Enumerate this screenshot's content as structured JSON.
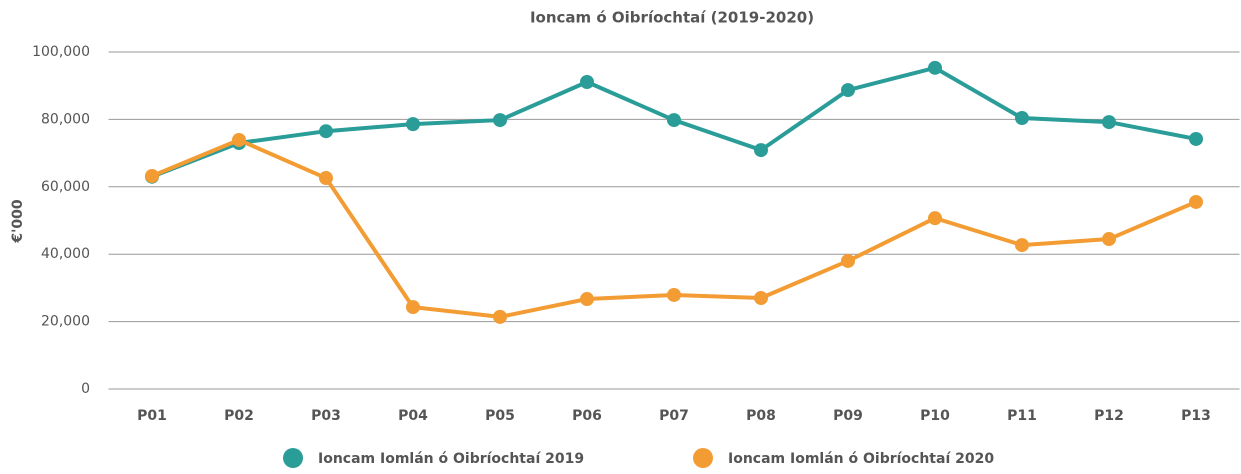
{
  "chart_data": {
    "type": "line",
    "title": "Ioncam ó Oibríochtaí (2019-2020)",
    "y_label": "€'000",
    "categories": [
      "P01",
      "P02",
      "P03",
      "P04",
      "P05",
      "P06",
      "P07",
      "P08",
      "P09",
      "P10",
      "P11",
      "P12",
      "P13"
    ],
    "series": [
      {
        "name": "Ioncam Iomlán ó Oibríochtaí 2019",
        "color": "#2a9d99",
        "values": [
          63000,
          73000,
          76500,
          78600,
          79800,
          91100,
          79800,
          70900,
          88700,
          95300,
          80400,
          79200,
          74200
        ]
      },
      {
        "name": "Ioncam Iomlán ó Oibríochtaí 2020",
        "color": "#f39c33",
        "values": [
          63200,
          73900,
          62600,
          24300,
          21400,
          26700,
          27900,
          27000,
          38000,
          50700,
          42700,
          44500,
          55500
        ]
      }
    ],
    "ylim": [
      0,
      100000
    ],
    "yticks": [
      0,
      {
        "value": 20000,
        "label": "20,000"
      },
      {
        "value": 40000,
        "label": "40,000"
      },
      {
        "value": 60000,
        "label": "60,000"
      },
      {
        "value": 80000,
        "label": "80,000"
      },
      {
        "value": 100000,
        "label": "100,000"
      }
    ],
    "grid": true,
    "legend": "bottom"
  }
}
